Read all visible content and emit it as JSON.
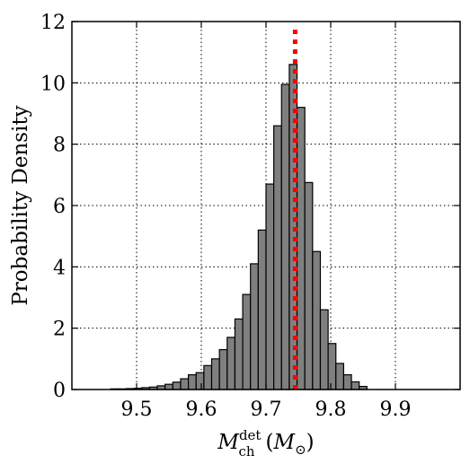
{
  "chart_data": {
    "type": "bar",
    "subtype": "histogram",
    "ylabel": "Probability Density",
    "xlabel": {
      "symbol": "M",
      "superscript": "det",
      "subscript": "ch",
      "unit_open": "(",
      "unit_symbol": "M",
      "unit_subscript": "⊙",
      "unit_close": ")"
    },
    "xlim": [
      9.4,
      10.0
    ],
    "ylim": [
      0,
      12
    ],
    "x_ticks": [
      9.5,
      9.6,
      9.7,
      9.8,
      9.9
    ],
    "x_tick_labels": [
      "9.5",
      "9.6",
      "9.7",
      "9.8",
      "9.9"
    ],
    "y_ticks": [
      0,
      2,
      4,
      6,
      8,
      10,
      12
    ],
    "y_tick_labels": [
      "0",
      "2",
      "4",
      "6",
      "8",
      "10",
      "12"
    ],
    "grid": true,
    "bin_width": 0.012,
    "bins": [
      {
        "left": 9.46,
        "height": 0.02
      },
      {
        "left": 9.472,
        "height": 0.02
      },
      {
        "left": 9.484,
        "height": 0.03
      },
      {
        "left": 9.496,
        "height": 0.04
      },
      {
        "left": 9.508,
        "height": 0.06
      },
      {
        "left": 9.52,
        "height": 0.08
      },
      {
        "left": 9.532,
        "height": 0.12
      },
      {
        "left": 9.544,
        "height": 0.17
      },
      {
        "left": 9.556,
        "height": 0.24
      },
      {
        "left": 9.568,
        "height": 0.35
      },
      {
        "left": 9.58,
        "height": 0.48
      },
      {
        "left": 9.592,
        "height": 0.55
      },
      {
        "left": 9.604,
        "height": 0.78
      },
      {
        "left": 9.616,
        "height": 1.0
      },
      {
        "left": 9.628,
        "height": 1.3
      },
      {
        "left": 9.64,
        "height": 1.7
      },
      {
        "left": 9.652,
        "height": 2.3
      },
      {
        "left": 9.664,
        "height": 3.1
      },
      {
        "left": 9.676,
        "height": 4.1
      },
      {
        "left": 9.688,
        "height": 5.2
      },
      {
        "left": 9.7,
        "height": 6.7
      },
      {
        "left": 9.712,
        "height": 8.6
      },
      {
        "left": 9.724,
        "height": 9.95
      },
      {
        "left": 9.736,
        "height": 10.6
      },
      {
        "left": 9.748,
        "height": 9.2
      },
      {
        "left": 9.76,
        "height": 6.75
      },
      {
        "left": 9.772,
        "height": 4.5
      },
      {
        "left": 9.784,
        "height": 2.6
      },
      {
        "left": 9.796,
        "height": 1.5
      },
      {
        "left": 9.808,
        "height": 0.85
      },
      {
        "left": 9.82,
        "height": 0.48
      },
      {
        "left": 9.832,
        "height": 0.25
      },
      {
        "left": 9.844,
        "height": 0.1
      }
    ],
    "reference_line": {
      "x": 9.745,
      "color": "#ff0000",
      "style": "dotted"
    },
    "bar_color": "#7f7f7f",
    "edge_color": "#000000"
  }
}
